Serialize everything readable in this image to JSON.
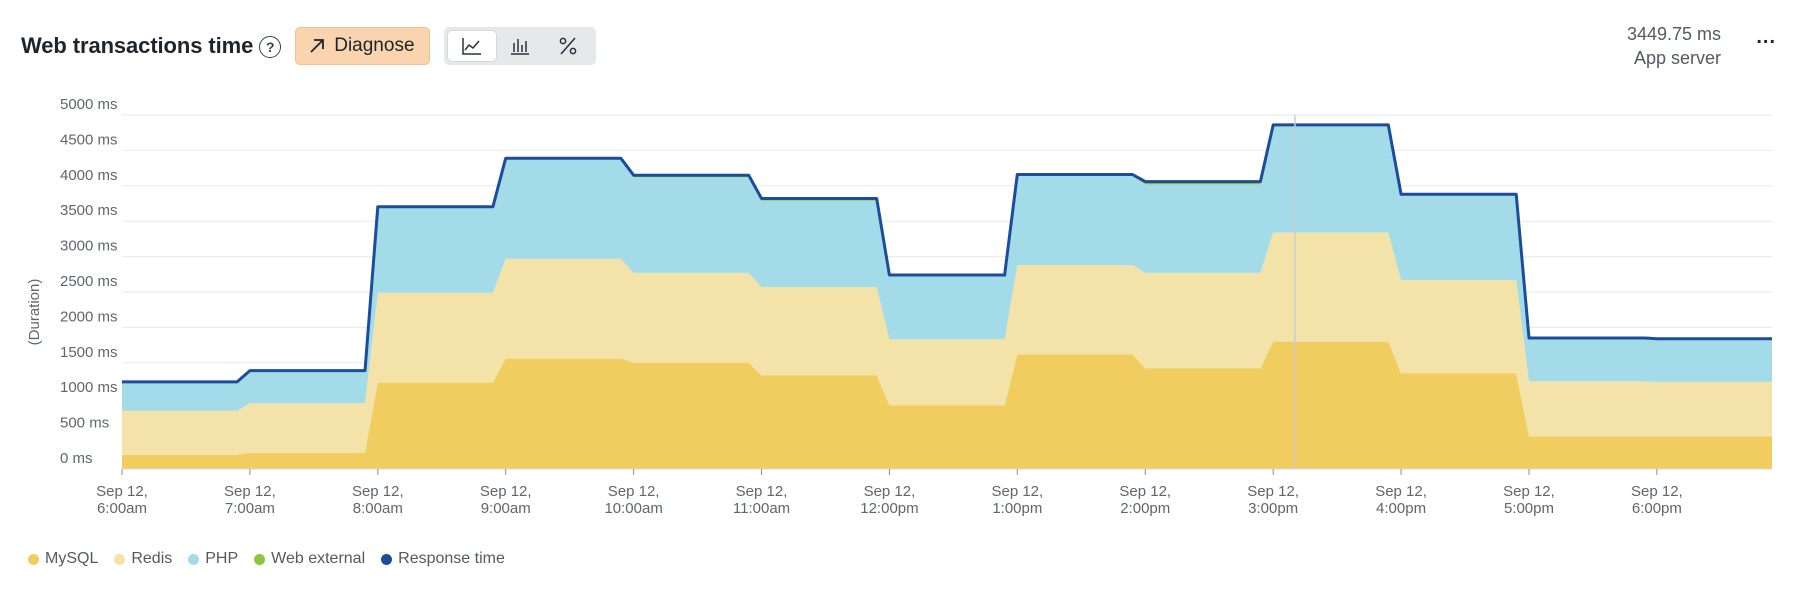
{
  "header": {
    "title": "Web transactions time",
    "help_icon": "question-circle-icon",
    "diagnose_label": "Diagnose",
    "diagnose_icon": "arrow-up-right-icon",
    "chart_type_buttons": [
      {
        "icon": "line-chart-icon",
        "active": true
      },
      {
        "icon": "bar-chart-icon",
        "active": false
      },
      {
        "icon": "percent-icon",
        "active": false
      }
    ]
  },
  "readout": {
    "value": "3449.75 ms",
    "label": "App server"
  },
  "more_label": "...",
  "chart_data": {
    "type": "area",
    "stacked": true,
    "ylabel": "(Duration)",
    "ylim": [
      0,
      5000
    ],
    "yticks": [
      {
        "value": 0,
        "label": "0 ms"
      },
      {
        "value": 500,
        "label": "500 ms"
      },
      {
        "value": 1000,
        "label": "1000 ms"
      },
      {
        "value": 1500,
        "label": "1500 ms"
      },
      {
        "value": 2000,
        "label": "2000 ms"
      },
      {
        "value": 2500,
        "label": "2500 ms"
      },
      {
        "value": 3000,
        "label": "3000 ms"
      },
      {
        "value": 3500,
        "label": "3500 ms"
      },
      {
        "value": 4000,
        "label": "4000 ms"
      },
      {
        "value": 4500,
        "label": "4500 ms"
      },
      {
        "value": 5000,
        "label": "5000 ms"
      }
    ],
    "xlim": [
      6.0,
      18.9
    ],
    "xticks": [
      {
        "hour": 6,
        "line1": "Sep 12,",
        "line2": "6:00am"
      },
      {
        "hour": 7,
        "line1": "Sep 12,",
        "line2": "7:00am"
      },
      {
        "hour": 8,
        "line1": "Sep 12,",
        "line2": "8:00am"
      },
      {
        "hour": 9,
        "line1": "Sep 12,",
        "line2": "9:00am"
      },
      {
        "hour": 10,
        "line1": "Sep 12,",
        "line2": "10:00am"
      },
      {
        "hour": 11,
        "line1": "Sep 12,",
        "line2": "11:00am"
      },
      {
        "hour": 12,
        "line1": "Sep 12,",
        "line2": "12:00pm"
      },
      {
        "hour": 13,
        "line1": "Sep 12,",
        "line2": "1:00pm"
      },
      {
        "hour": 14,
        "line1": "Sep 12,",
        "line2": "2:00pm"
      },
      {
        "hour": 15,
        "line1": "Sep 12,",
        "line2": "3:00pm"
      },
      {
        "hour": 16,
        "line1": "Sep 12,",
        "line2": "4:00pm"
      },
      {
        "hour": 17,
        "line1": "Sep 12,",
        "line2": "5:00pm"
      },
      {
        "hour": 18,
        "line1": "Sep 12,",
        "line2": "6:00pm"
      }
    ],
    "x": [
      6.0,
      6.9,
      7.0,
      7.9,
      8.0,
      8.9,
      9.0,
      9.9,
      10.0,
      10.9,
      11.0,
      11.9,
      12.0,
      12.9,
      13.0,
      13.9,
      14.0,
      14.9,
      15.0,
      15.9,
      16.0,
      16.9,
      17.0,
      17.9,
      18.0,
      18.9
    ],
    "series": [
      {
        "name": "MySQL",
        "color": "#f0cd5e",
        "values": [
          200,
          200,
          230,
          230,
          1220,
          1220,
          1560,
          1560,
          1500,
          1500,
          1320,
          1320,
          900,
          900,
          1620,
          1620,
          1420,
          1420,
          1800,
          1800,
          1350,
          1350,
          460,
          460,
          460,
          460
        ]
      },
      {
        "name": "Redis",
        "color": "#f3e3a8",
        "values": [
          620,
          620,
          700,
          700,
          1270,
          1270,
          1410,
          1410,
          1270,
          1270,
          1250,
          1250,
          930,
          930,
          1260,
          1260,
          1350,
          1350,
          1540,
          1540,
          1320,
          1320,
          780,
          780,
          770,
          770
        ]
      },
      {
        "name": "PHP",
        "color": "#a4dbe8",
        "values": [
          400,
          400,
          450,
          450,
          1200,
          1200,
          1400,
          1400,
          1350,
          1350,
          1220,
          1220,
          900,
          900,
          1260,
          1260,
          1250,
          1250,
          1500,
          1500,
          1190,
          1190,
          600,
          600,
          600,
          600
        ]
      },
      {
        "name": "Web external",
        "color": "#8cc63f",
        "values": [
          10,
          10,
          10,
          10,
          15,
          15,
          20,
          20,
          30,
          30,
          30,
          30,
          10,
          10,
          20,
          20,
          40,
          40,
          20,
          20,
          20,
          20,
          10,
          10,
          10,
          10
        ]
      }
    ],
    "response_time": {
      "name": "Response time",
      "color": "#1b4d9c",
      "values": [
        1230,
        1230,
        1390,
        1390,
        3705,
        3705,
        4390,
        4390,
        4150,
        4150,
        3820,
        3820,
        2740,
        2740,
        4160,
        4160,
        4060,
        4060,
        4860,
        4860,
        3880,
        3880,
        1850,
        1850,
        1840,
        1840
      ]
    },
    "crosshair_hour": 15.17
  },
  "legend": [
    {
      "name": "MySQL",
      "color": "#f0cd5e"
    },
    {
      "name": "Redis",
      "color": "#f3e3a8"
    },
    {
      "name": "PHP",
      "color": "#a4dbe8"
    },
    {
      "name": "Web external",
      "color": "#8cc63f"
    },
    {
      "name": "Response time",
      "color": "#1b4d9c"
    }
  ]
}
